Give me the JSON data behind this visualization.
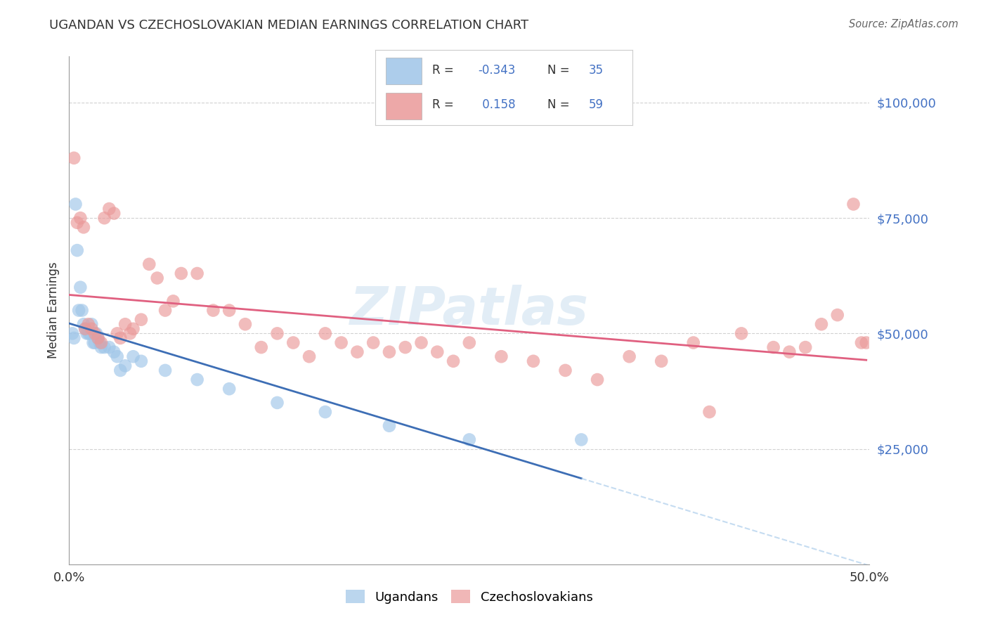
{
  "title": "UGANDAN VS CZECHOSLOVAKIAN MEDIAN EARNINGS CORRELATION CHART",
  "source": "Source: ZipAtlas.com",
  "ylabel": "Median Earnings",
  "xlim": [
    0.0,
    0.5
  ],
  "ylim": [
    0,
    110000
  ],
  "yticks": [
    25000,
    50000,
    75000,
    100000
  ],
  "ytick_labels": [
    "$25,000",
    "$50,000",
    "$75,000",
    "$100,000"
  ],
  "ugandan_color": "#9fc5e8",
  "czechoslovakian_color": "#ea9999",
  "ugandan_line_color": "#3d6eb5",
  "czechoslovakian_line_color": "#e06080",
  "ugandan_line_color_dash": "#9fc5e8",
  "background_color": "#ffffff",
  "grid_color": "#cccccc",
  "label_color": "#4472c4",
  "watermark": "ZIPatlas",
  "ugandan_x": [
    0.002,
    0.003,
    0.004,
    0.005,
    0.006,
    0.007,
    0.008,
    0.009,
    0.01,
    0.011,
    0.012,
    0.013,
    0.014,
    0.015,
    0.016,
    0.017,
    0.018,
    0.019,
    0.02,
    0.022,
    0.025,
    0.028,
    0.03,
    0.032,
    0.035,
    0.04,
    0.045,
    0.06,
    0.08,
    0.1,
    0.13,
    0.16,
    0.2,
    0.25,
    0.32
  ],
  "ugandan_y": [
    50000,
    49000,
    78000,
    68000,
    55000,
    60000,
    55000,
    52000,
    51000,
    50000,
    50000,
    50000,
    52000,
    48000,
    48000,
    50000,
    49000,
    48000,
    47000,
    47000,
    47000,
    46000,
    45000,
    42000,
    43000,
    45000,
    44000,
    42000,
    40000,
    38000,
    35000,
    33000,
    30000,
    27000,
    27000
  ],
  "czechoslovakian_x": [
    0.003,
    0.005,
    0.007,
    0.009,
    0.01,
    0.012,
    0.014,
    0.016,
    0.018,
    0.02,
    0.022,
    0.025,
    0.028,
    0.03,
    0.032,
    0.035,
    0.038,
    0.04,
    0.045,
    0.05,
    0.055,
    0.06,
    0.065,
    0.07,
    0.08,
    0.09,
    0.1,
    0.11,
    0.12,
    0.13,
    0.14,
    0.15,
    0.16,
    0.17,
    0.18,
    0.19,
    0.2,
    0.21,
    0.22,
    0.23,
    0.24,
    0.25,
    0.27,
    0.29,
    0.31,
    0.33,
    0.35,
    0.37,
    0.39,
    0.4,
    0.42,
    0.44,
    0.45,
    0.46,
    0.47,
    0.48,
    0.49,
    0.495,
    0.498
  ],
  "czechoslovakian_y": [
    88000,
    74000,
    75000,
    73000,
    51000,
    52000,
    51000,
    50000,
    49000,
    48000,
    75000,
    77000,
    76000,
    50000,
    49000,
    52000,
    50000,
    51000,
    53000,
    65000,
    62000,
    55000,
    57000,
    63000,
    63000,
    55000,
    55000,
    52000,
    47000,
    50000,
    48000,
    45000,
    50000,
    48000,
    46000,
    48000,
    46000,
    47000,
    48000,
    46000,
    44000,
    48000,
    45000,
    44000,
    42000,
    40000,
    45000,
    44000,
    48000,
    33000,
    50000,
    47000,
    46000,
    47000,
    52000,
    54000,
    78000,
    48000,
    48000
  ]
}
